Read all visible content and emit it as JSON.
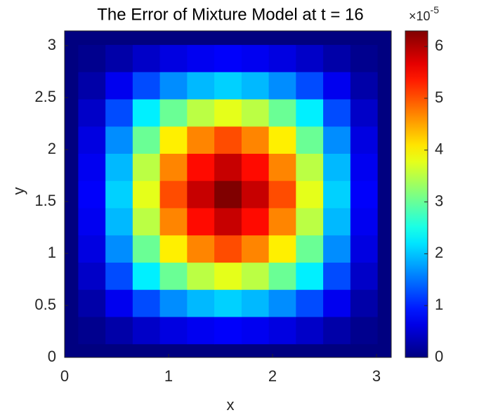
{
  "chart_data": {
    "type": "heatmap",
    "title": "The Error of Mixture Model at t = 16",
    "xlabel": "x",
    "ylabel": "y",
    "colormap": "jet",
    "x": [
      0,
      0.262,
      0.524,
      0.785,
      1.047,
      1.309,
      1.571,
      1.833,
      2.094,
      2.356,
      2.618,
      2.88,
      3.1416
    ],
    "y": [
      0,
      0.262,
      0.524,
      0.785,
      1.047,
      1.309,
      1.571,
      1.833,
      2.094,
      2.356,
      2.618,
      2.88,
      3.1416
    ],
    "z": [
      [
        0,
        0,
        0,
        0,
        0,
        0,
        0,
        0,
        0,
        0,
        0,
        0,
        0
      ],
      [
        0,
        0.09,
        0.25,
        0.45,
        0.6,
        0.7,
        0.76,
        0.7,
        0.6,
        0.45,
        0.25,
        0.09,
        0
      ],
      [
        0,
        0.25,
        0.69,
        1.25,
        1.66,
        1.93,
        2.08,
        1.93,
        1.66,
        1.25,
        0.69,
        0.25,
        0
      ],
      [
        0,
        0.45,
        1.25,
        2.27,
        3.02,
        3.52,
        3.78,
        3.52,
        3.02,
        2.27,
        1.25,
        0.45,
        0
      ],
      [
        0,
        0.6,
        1.66,
        3.02,
        4.03,
        4.69,
        5.04,
        4.69,
        4.03,
        3.02,
        1.66,
        0.6,
        0
      ],
      [
        0,
        0.7,
        1.93,
        3.52,
        4.69,
        5.45,
        5.86,
        5.45,
        4.69,
        3.52,
        1.93,
        0.7,
        0
      ],
      [
        0,
        0.76,
        2.08,
        3.78,
        5.04,
        5.86,
        6.3,
        5.86,
        5.04,
        3.78,
        2.08,
        0.76,
        0
      ],
      [
        0,
        0.7,
        1.93,
        3.52,
        4.69,
        5.45,
        5.86,
        5.45,
        4.69,
        3.52,
        1.93,
        0.7,
        0
      ],
      [
        0,
        0.6,
        1.66,
        3.02,
        4.03,
        4.69,
        5.04,
        4.69,
        4.03,
        3.02,
        1.66,
        0.6,
        0
      ],
      [
        0,
        0.45,
        1.25,
        2.27,
        3.02,
        3.52,
        3.78,
        3.52,
        3.02,
        2.27,
        1.25,
        0.45,
        0
      ],
      [
        0,
        0.25,
        0.69,
        1.25,
        1.66,
        1.93,
        2.08,
        1.93,
        1.66,
        1.25,
        0.69,
        0.25,
        0
      ],
      [
        0,
        0.09,
        0.25,
        0.45,
        0.6,
        0.7,
        0.76,
        0.7,
        0.6,
        0.45,
        0.25,
        0.09,
        0
      ],
      [
        0,
        0,
        0,
        0,
        0,
        0,
        0,
        0,
        0,
        0,
        0,
        0,
        0
      ]
    ],
    "xlim": [
      0,
      3.1416
    ],
    "ylim": [
      0,
      3.1416
    ],
    "xticks": [
      0,
      1,
      2,
      3
    ],
    "yticks": [
      0,
      0.5,
      1,
      1.5,
      2,
      2.5,
      3
    ],
    "colorbar": {
      "lim": [
        0,
        6.3
      ],
      "ticks": [
        0,
        1,
        2,
        3,
        4,
        5,
        6
      ],
      "multiplier": {
        "base": "×10",
        "exponent": "-5"
      }
    }
  }
}
